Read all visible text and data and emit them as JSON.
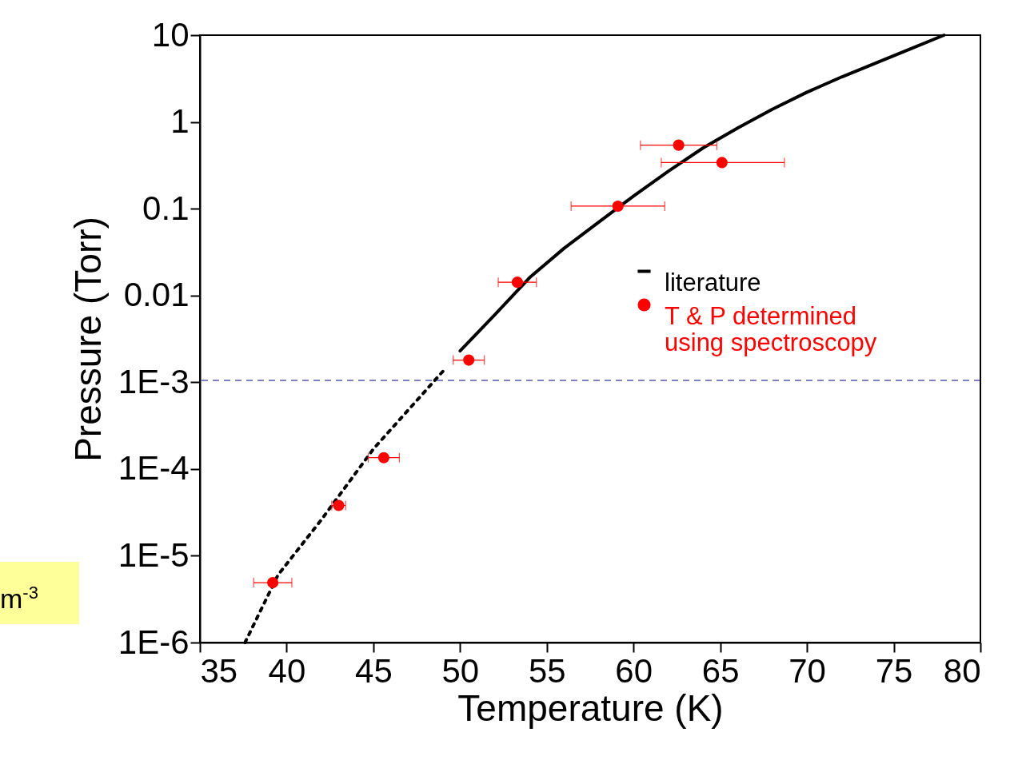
{
  "chart_data": {
    "type": "scatter",
    "xlabel": "Temperature (K)",
    "ylabel": "Pressure (Torr)",
    "log": "y",
    "xlim": [
      35,
      80
    ],
    "xticks": [
      35,
      40,
      45,
      50,
      55,
      60,
      65,
      70,
      75,
      80
    ],
    "ylim": [
      1e-06,
      10
    ],
    "yticks": [
      {
        "value": 1e-06,
        "label": "1E-6"
      },
      {
        "value": 1e-05,
        "label": "1E-5"
      },
      {
        "value": 0.0001,
        "label": "1E-4"
      },
      {
        "value": 0.001,
        "label": "1E-3"
      },
      0.01,
      0.1,
      1,
      10
    ],
    "legend": "right",
    "grid": false,
    "series": [
      {
        "name": "literature",
        "type": "line",
        "color": "#000000",
        "line_style": "solid",
        "x": [
          50,
          52,
          54,
          56,
          58,
          60,
          62,
          64,
          66,
          68,
          70,
          72,
          74,
          76,
          77.9
        ],
        "values": [
          0.0023,
          0.006,
          0.016,
          0.035,
          0.07,
          0.14,
          0.27,
          0.5,
          0.85,
          1.4,
          2.2,
          3.3,
          4.8,
          7,
          10
        ]
      },
      {
        "type": "line",
        "color": "#000000",
        "line_style": "dotted",
        "x": [
          37.6,
          39.5,
          42,
          45,
          49.1
        ],
        "values": [
          1e-06,
          6e-06,
          2.6e-05,
          0.00017,
          0.0014
        ]
      },
      {
        "name": "T & P determined using spectroscopy",
        "marker": "circle",
        "color": "#ff0000",
        "x": [
          39.2,
          43.0,
          45.6,
          50.5,
          53.3,
          59.1,
          62.6,
          65.1
        ],
        "values": [
          4.9e-06,
          3.8e-05,
          0.000135,
          0.0018,
          0.0142,
          0.107,
          0.54,
          0.34
        ],
        "xerrors": [
          1.1,
          0.4,
          0.9,
          0.9,
          1.1,
          [
            56.4,
            61.8
          ],
          [
            60.4,
            64.8
          ],
          [
            61.6,
            68.7
          ]
        ]
      }
    ],
    "ref_lines": [
      {
        "axis": "y",
        "value": 0.00105,
        "color": "#000080",
        "line_style": "dashed"
      }
    ],
    "annotations": [
      "m$^{-3}$"
    ]
  }
}
